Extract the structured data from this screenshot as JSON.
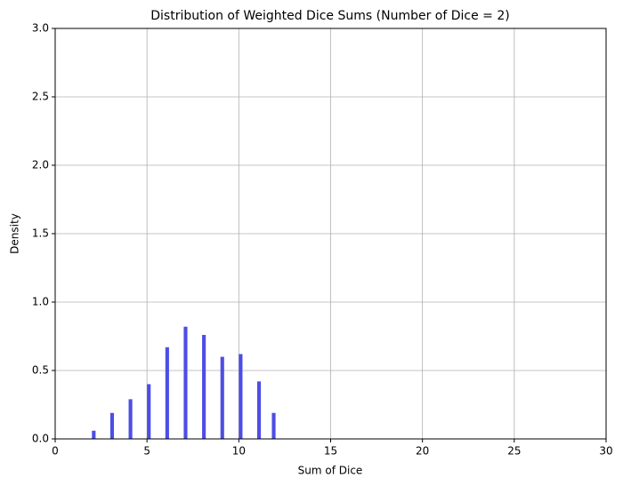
{
  "chart_data": {
    "type": "histogram",
    "title": "Distribution of Weighted Dice Sums (Number of Dice = 2)",
    "x_label": "Sum of Dice",
    "y_label": "Density",
    "bins": [
      2,
      2.2,
      2.4,
      2.6,
      2.8,
      3,
      3.2,
      3.4,
      3.6,
      3.8,
      4,
      4.2,
      4.4,
      4.6,
      4.8,
      5,
      5.2,
      5.4,
      5.6,
      5.8,
      6,
      6.2,
      6.4,
      6.6,
      6.8,
      7,
      7.2,
      7.4,
      7.6,
      7.8,
      8,
      8.2,
      8.4,
      8.6,
      8.8,
      9,
      9.2,
      9.4,
      9.6,
      9.8,
      10,
      10.2,
      10.4,
      10.6,
      10.8,
      11,
      11.2,
      11.4,
      11.6,
      11.8,
      12
    ],
    "values": [
      0.06,
      0,
      0,
      0,
      0,
      0.19,
      0,
      0,
      0,
      0,
      0.29,
      0,
      0,
      0,
      0,
      0.4,
      0,
      0,
      0,
      0,
      0.67,
      0,
      0,
      0,
      0,
      0.82,
      0,
      0,
      0,
      0,
      0.76,
      0,
      0,
      0,
      0,
      0.6,
      0,
      0,
      0,
      0,
      0.62,
      0,
      0,
      0,
      0,
      0.42,
      0,
      0,
      0,
      0.19
    ],
    "color": "#4d4de6",
    "xlim": [
      0,
      30
    ],
    "xticks": [
      0,
      5,
      10,
      15,
      20,
      25,
      30
    ],
    "ylim": [
      0,
      3
    ],
    "yticks": [
      {
        "value": 0,
        "label": "0.0"
      },
      0.5,
      {
        "value": 1,
        "label": "1.0"
      },
      1.5,
      {
        "value": 2,
        "label": "2.0"
      },
      2.5,
      {
        "value": 3,
        "label": "3.0"
      }
    ],
    "grid": true
  }
}
